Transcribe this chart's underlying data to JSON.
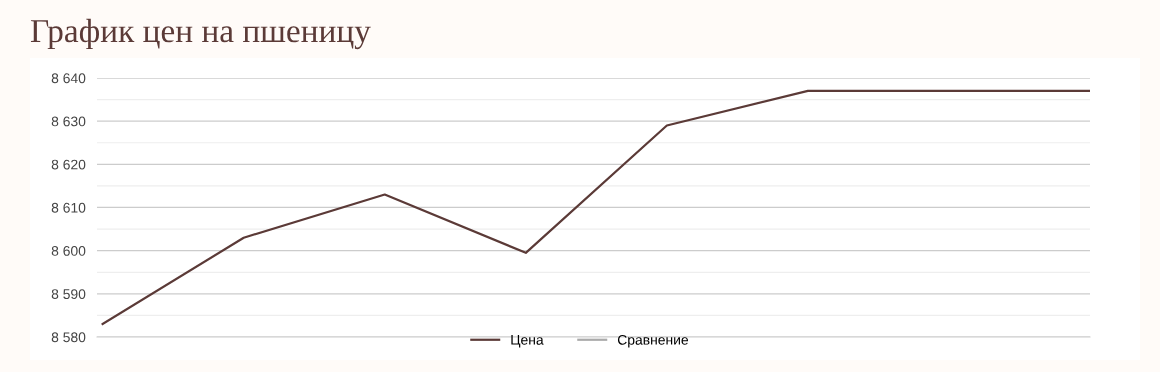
{
  "chart_data": {
    "type": "line",
    "title": "График цен на пшеницу",
    "categories": [
      null,
      null,
      null,
      null,
      null,
      null,
      null,
      null
    ],
    "series": [
      {
        "name": "Цена",
        "color": "#5b3a37",
        "values": [
          8583,
          8603,
          8613,
          8599.5,
          8629,
          8637,
          8637,
          8637
        ]
      },
      {
        "name": "Сравнение",
        "color": "#aaaaaa",
        "values": [
          null,
          null,
          null,
          null,
          null,
          null,
          null,
          null
        ]
      }
    ],
    "ylim": [
      8580,
      8640
    ],
    "yticks": [
      {
        "value": 8580,
        "label": "8 580"
      },
      {
        "value": 8585,
        "label": null
      },
      {
        "value": 8590,
        "label": "8 590"
      },
      {
        "value": 8595,
        "label": null
      },
      {
        "value": 8600,
        "label": "8 600"
      },
      {
        "value": 8605,
        "label": null
      },
      {
        "value": 8610,
        "label": "8 610"
      },
      {
        "value": 8615,
        "label": null
      },
      {
        "value": 8620,
        "label": "8 620"
      },
      {
        "value": 8625,
        "label": null
      },
      {
        "value": 8630,
        "label": "8 630"
      },
      {
        "value": 8635,
        "label": null
      },
      {
        "value": 8640,
        "label": "8 640"
      }
    ],
    "grid": "y",
    "legend": "bottom",
    "marker": "none",
    "line_style": "solid",
    "tick_labels": "y"
  }
}
